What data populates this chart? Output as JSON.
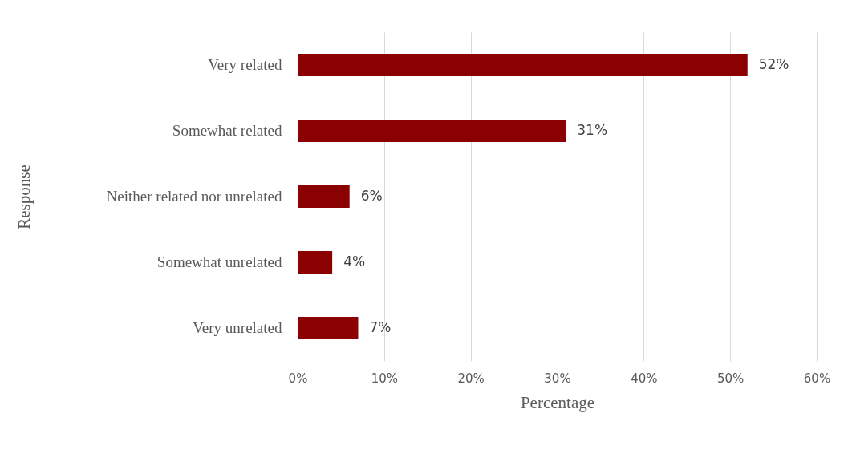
{
  "chart_data": {
    "type": "bar",
    "orientation": "horizontal",
    "xlabel": "Percentage",
    "ylabel": "Response",
    "categories": [
      "Very related",
      "Somewhat related",
      "Neither related nor unrelated",
      "Somewhat unrelated",
      "Very unrelated"
    ],
    "values": [
      52,
      31,
      6,
      4,
      7
    ],
    "value_labels": [
      "52%",
      "31%",
      "6%",
      "4%",
      "7%"
    ],
    "color": "#8b0000",
    "xlim": [
      0,
      60
    ],
    "xticks": [
      {
        "value": 0,
        "label": "0%"
      },
      {
        "value": 10,
        "label": "10%"
      },
      {
        "value": 20,
        "label": "20%"
      },
      {
        "value": 30,
        "label": "30%"
      },
      {
        "value": 40,
        "label": "40%"
      },
      {
        "value": 50,
        "label": "50%"
      },
      {
        "value": 60,
        "label": "60%"
      }
    ],
    "grid": "x"
  }
}
